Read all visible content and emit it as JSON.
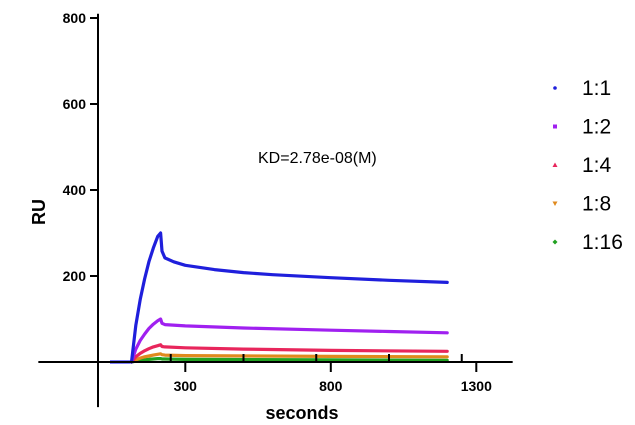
{
  "chart_data": {
    "type": "line",
    "xlabel": "seconds",
    "ylabel": "RU",
    "xlim": [
      -205,
      1425
    ],
    "ylim": [
      -105,
      810
    ],
    "xticks": [
      300,
      800,
      1300
    ],
    "xtick_labels": [
      "300",
      "800",
      "1300"
    ],
    "yticks": [
      200,
      400,
      600,
      800
    ],
    "ytick_labels": [
      "200",
      "400",
      "600",
      "800"
    ],
    "annotation": "KD=2.78e-08(M)",
    "legend_position": "right",
    "grid": false,
    "baseline": {
      "x": [
        0,
        115
      ],
      "y": 0,
      "color": "#0000ff"
    },
    "series": [
      {
        "name": "1:1",
        "color": "#1f1fdc",
        "marker": "dot",
        "x": [
          115,
          130,
          145,
          160,
          175,
          190,
          205,
          215,
          220,
          230,
          260,
          300,
          400,
          500,
          600,
          800,
          1000,
          1200
        ],
        "y": [
          0,
          85,
          145,
          193,
          233,
          265,
          292,
          300,
          258,
          242,
          233,
          225,
          215,
          208,
          203,
          196,
          190,
          185
        ]
      },
      {
        "name": "1:2",
        "color": "#a020f0",
        "marker": "square",
        "x": [
          115,
          130,
          145,
          160,
          175,
          190,
          205,
          215,
          220,
          230,
          300,
          500,
          800,
          1000,
          1200
        ],
        "y": [
          0,
          30,
          50,
          65,
          78,
          88,
          96,
          100,
          90,
          87,
          84,
          79,
          74,
          71,
          68
        ]
      },
      {
        "name": "1:4",
        "color": "#e8265c",
        "marker": "triangle-up",
        "x": [
          115,
          130,
          145,
          160,
          175,
          190,
          205,
          215,
          220,
          230,
          300,
          500,
          800,
          1200
        ],
        "y": [
          0,
          12,
          20,
          26,
          31,
          35,
          38,
          40,
          36,
          35,
          33,
          30,
          27,
          25
        ]
      },
      {
        "name": "1:8",
        "color": "#e08a1e",
        "marker": "triangle-down",
        "x": [
          115,
          130,
          145,
          160,
          175,
          190,
          205,
          215,
          220,
          230,
          300,
          800,
          1200
        ],
        "y": [
          0,
          5,
          9,
          12,
          14,
          16,
          18,
          19,
          17,
          16,
          15,
          13,
          12
        ]
      },
      {
        "name": "1:16",
        "color": "#21a121",
        "marker": "diamond",
        "x": [
          115,
          130,
          145,
          160,
          175,
          190,
          205,
          215,
          220,
          230,
          300,
          800,
          1200
        ],
        "y": [
          0,
          2,
          4,
          5,
          6,
          7,
          8,
          8,
          7,
          7,
          6,
          5,
          4
        ]
      }
    ]
  }
}
